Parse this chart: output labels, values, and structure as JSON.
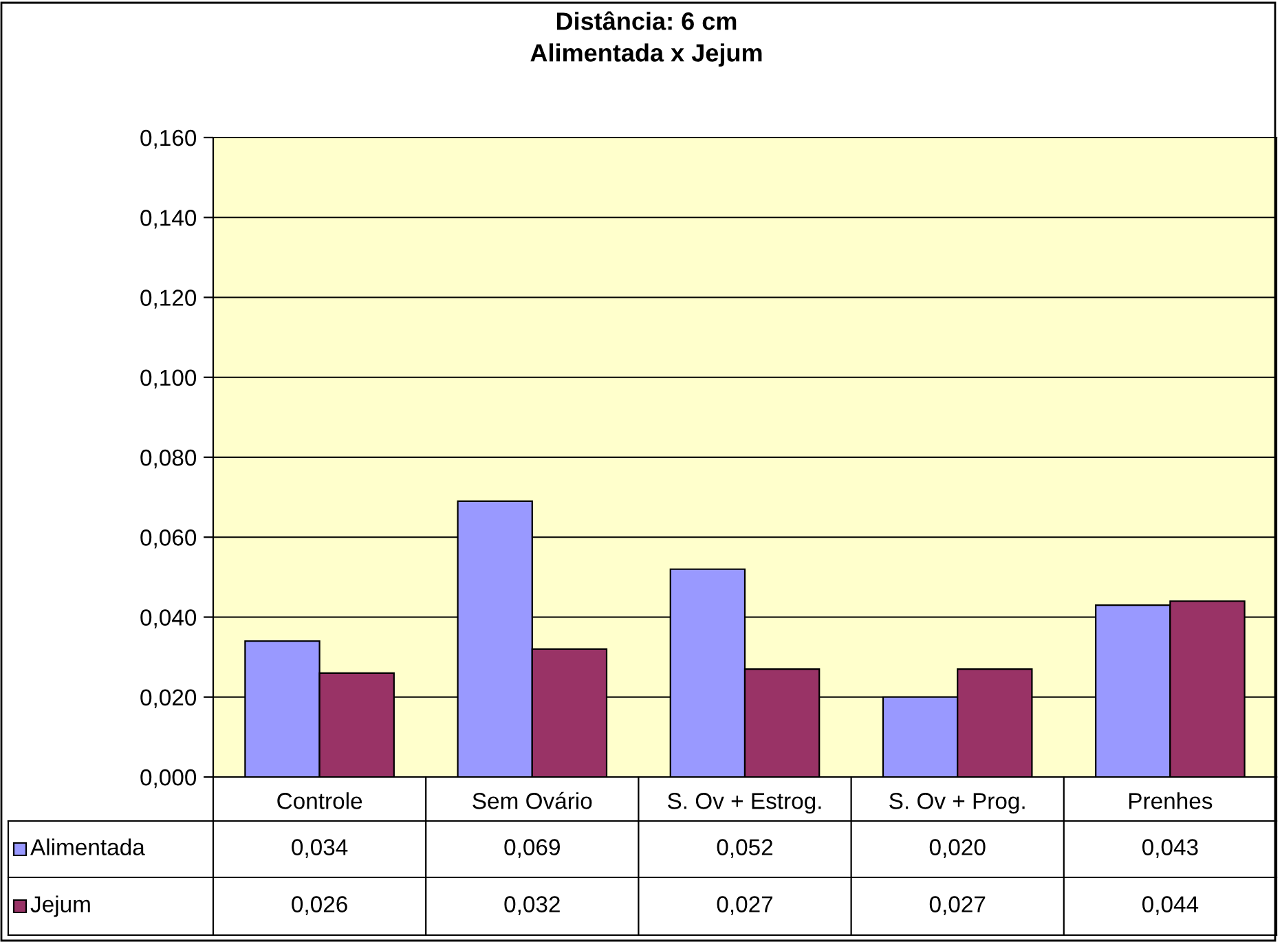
{
  "chart_data": {
    "type": "bar",
    "title": "Distância: 6 cm",
    "subtitle": "Alimentada x Jejum",
    "categories": [
      "Controle",
      "Sem Ovário",
      "S. Ov + Estrog.",
      "S. Ov + Prog.",
      "Prenhes"
    ],
    "series": [
      {
        "name": "Alimentada",
        "color": "#9999ff",
        "values": [
          0.034,
          0.069,
          0.052,
          0.02,
          0.043
        ],
        "value_labels": [
          "0,034",
          "0,069",
          "0,052",
          "0,020",
          "0,043"
        ]
      },
      {
        "name": "Jejum",
        "color": "#993366",
        "values": [
          0.026,
          0.032,
          0.027,
          0.027,
          0.044
        ],
        "value_labels": [
          "0,026",
          "0,032",
          "0,027",
          "0,027",
          "0,044"
        ]
      }
    ],
    "ylim": [
      0,
      0.16
    ],
    "yticks": [
      {
        "value": 0,
        "label": "0,000"
      },
      {
        "value": 0.02,
        "label": "0,020"
      },
      {
        "value": 0.04,
        "label": "0,040"
      },
      {
        "value": 0.06,
        "label": "0,060"
      },
      {
        "value": 0.08,
        "label": "0,080"
      },
      {
        "value": 0.1,
        "label": "0,100"
      },
      {
        "value": 0.12,
        "label": "0,120"
      },
      {
        "value": 0.14,
        "label": "0,140"
      },
      {
        "value": 0.16,
        "label": "0,160"
      }
    ],
    "grid": "y",
    "legend": "bottom left"
  }
}
